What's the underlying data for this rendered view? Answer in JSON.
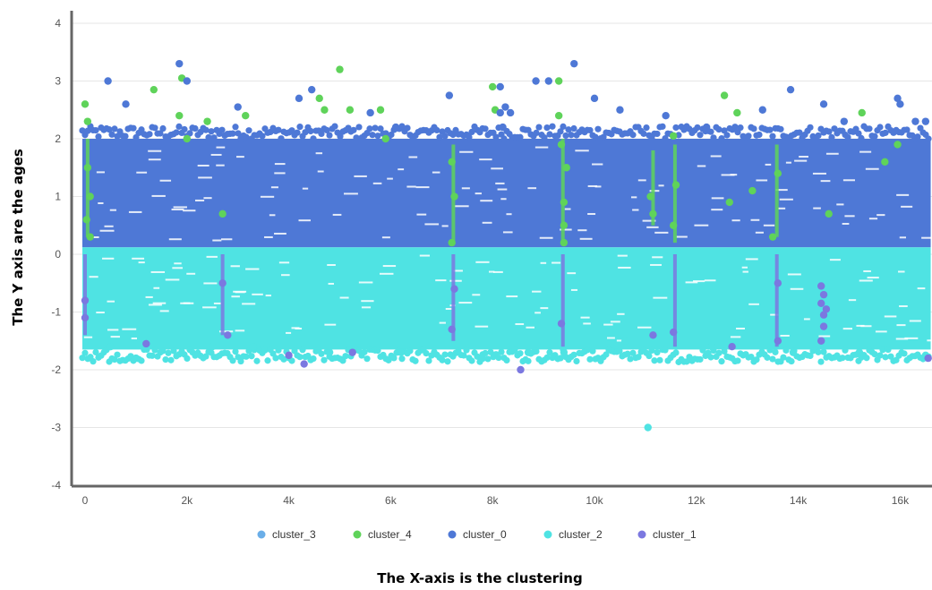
{
  "chart_data": {
    "type": "scatter",
    "title": "",
    "xlabel": "The X-axis is the clustering",
    "ylabel": "The Y axis are the ages",
    "xlim": [
      -200,
      16600
    ],
    "ylim": [
      -4,
      4
    ],
    "x_ticks": [
      0,
      2000,
      4000,
      6000,
      8000,
      10000,
      12000,
      14000,
      16000
    ],
    "x_tick_labels": [
      "0",
      "2k",
      "4k",
      "6k",
      "8k",
      "10k",
      "12k",
      "14k",
      "16k"
    ],
    "y_ticks": [
      4,
      3,
      2,
      1,
      0,
      -1,
      -2,
      -3,
      -4
    ],
    "y_tick_labels": [
      "4",
      "3",
      "2",
      "1",
      "0",
      "-1",
      "-2",
      "-3",
      "-4"
    ],
    "grid": "horizontal",
    "legend_position": "bottom",
    "series": [
      {
        "name": "cluster_3",
        "color": "#6aaee8",
        "points": []
      },
      {
        "name": "cluster_4",
        "color": "#5fd35a",
        "points": [
          [
            0,
            2.6
          ],
          [
            50,
            2.3
          ],
          [
            50,
            1.5
          ],
          [
            100,
            1.0
          ],
          [
            30,
            0.6
          ],
          [
            100,
            0.3
          ],
          [
            1350,
            2.85
          ],
          [
            1850,
            2.4
          ],
          [
            1900,
            3.05
          ],
          [
            2000,
            2.0
          ],
          [
            2400,
            2.3
          ],
          [
            2700,
            0.7
          ],
          [
            3150,
            2.4
          ],
          [
            4600,
            2.7
          ],
          [
            4700,
            2.5
          ],
          [
            5000,
            3.2
          ],
          [
            5200,
            2.5
          ],
          [
            5800,
            2.5
          ],
          [
            5900,
            2.0
          ],
          [
            7200,
            0.2
          ],
          [
            7250,
            1.0
          ],
          [
            7200,
            1.6
          ],
          [
            8000,
            2.9
          ],
          [
            8050,
            2.5
          ],
          [
            9300,
            3.0
          ],
          [
            9300,
            2.4
          ],
          [
            9350,
            1.9
          ],
          [
            9400,
            0.9
          ],
          [
            9400,
            0.5
          ],
          [
            9400,
            0.2
          ],
          [
            9450,
            1.5
          ],
          [
            11100,
            1.0
          ],
          [
            11150,
            0.7
          ],
          [
            11550,
            2.05
          ],
          [
            11550,
            0.5
          ],
          [
            11600,
            1.2
          ],
          [
            12550,
            2.75
          ],
          [
            12650,
            0.9
          ],
          [
            12800,
            2.45
          ],
          [
            13100,
            1.1
          ],
          [
            13500,
            0.3
          ],
          [
            13600,
            1.4
          ],
          [
            14600,
            0.7
          ],
          [
            15250,
            2.45
          ],
          [
            15700,
            1.6
          ],
          [
            15950,
            1.9
          ]
        ]
      },
      {
        "name": "cluster_0",
        "color": "#4e78d6",
        "points": [
          [
            450,
            3.0
          ],
          [
            1850,
            3.3
          ],
          [
            2000,
            3.0
          ],
          [
            4200,
            2.7
          ],
          [
            4450,
            2.85
          ],
          [
            7150,
            2.75
          ],
          [
            8150,
            2.9
          ],
          [
            8150,
            2.45
          ],
          [
            8200,
            2.2
          ],
          [
            8250,
            2.55
          ],
          [
            8350,
            2.45
          ],
          [
            8850,
            3.0
          ],
          [
            9100,
            3.0
          ],
          [
            9600,
            3.3
          ],
          [
            10000,
            2.7
          ],
          [
            13850,
            2.85
          ],
          [
            14500,
            2.6
          ],
          [
            15950,
            2.7
          ],
          [
            16000,
            2.6
          ],
          [
            16300,
            2.3
          ],
          [
            16500,
            2.3
          ],
          [
            800,
            2.6
          ],
          [
            3000,
            2.55
          ],
          [
            5600,
            2.45
          ],
          [
            6100,
            2.2
          ],
          [
            10500,
            2.5
          ],
          [
            11400,
            2.4
          ],
          [
            12200,
            2.2
          ],
          [
            13300,
            2.5
          ],
          [
            14900,
            2.3
          ]
        ]
      },
      {
        "name": "cluster_2",
        "color": "#4fe3e3",
        "points": [
          [
            11050,
            -3.0
          ],
          [
            1000,
            -1.8
          ],
          [
            2500,
            -1.6
          ],
          [
            4800,
            -1.7
          ],
          [
            6200,
            -1.7
          ],
          [
            7800,
            -1.8
          ],
          [
            9400,
            -1.7
          ],
          [
            10600,
            -1.5
          ],
          [
            12300,
            -1.6
          ],
          [
            13900,
            -1.7
          ],
          [
            15200,
            -1.7
          ],
          [
            16500,
            -1.75
          ],
          [
            500,
            -1.6
          ],
          [
            3300,
            -1.6
          ],
          [
            8700,
            -1.7
          ]
        ]
      },
      {
        "name": "cluster_1",
        "color": "#7b78e0",
        "points": [
          [
            8550,
            -2.0
          ],
          [
            4300,
            -1.9
          ],
          [
            4000,
            -1.75
          ],
          [
            1200,
            -1.55
          ],
          [
            2800,
            -1.4
          ],
          [
            7200,
            -1.3
          ],
          [
            7250,
            -0.6
          ],
          [
            9350,
            -1.2
          ],
          [
            11550,
            -1.35
          ],
          [
            11150,
            -1.4
          ],
          [
            13600,
            -1.5
          ],
          [
            13600,
            -0.5
          ],
          [
            14450,
            -0.55
          ],
          [
            14450,
            -0.85
          ],
          [
            14500,
            -1.05
          ],
          [
            14500,
            -1.25
          ],
          [
            14450,
            -1.5
          ],
          [
            14550,
            -0.95
          ],
          [
            14500,
            -0.7
          ],
          [
            16550,
            -1.8
          ],
          [
            0,
            -0.8
          ],
          [
            0,
            -1.1
          ],
          [
            2700,
            -0.5
          ],
          [
            12700,
            -1.6
          ],
          [
            5250,
            -1.7
          ]
        ]
      }
    ],
    "bands": [
      {
        "series": "cluster_0",
        "y_range": [
          0.12,
          2.0
        ],
        "x_range": [
          0,
          16600
        ]
      },
      {
        "series": "cluster_2",
        "y_range": [
          -1.65,
          0.12
        ],
        "x_range": [
          0,
          16600
        ]
      }
    ]
  }
}
